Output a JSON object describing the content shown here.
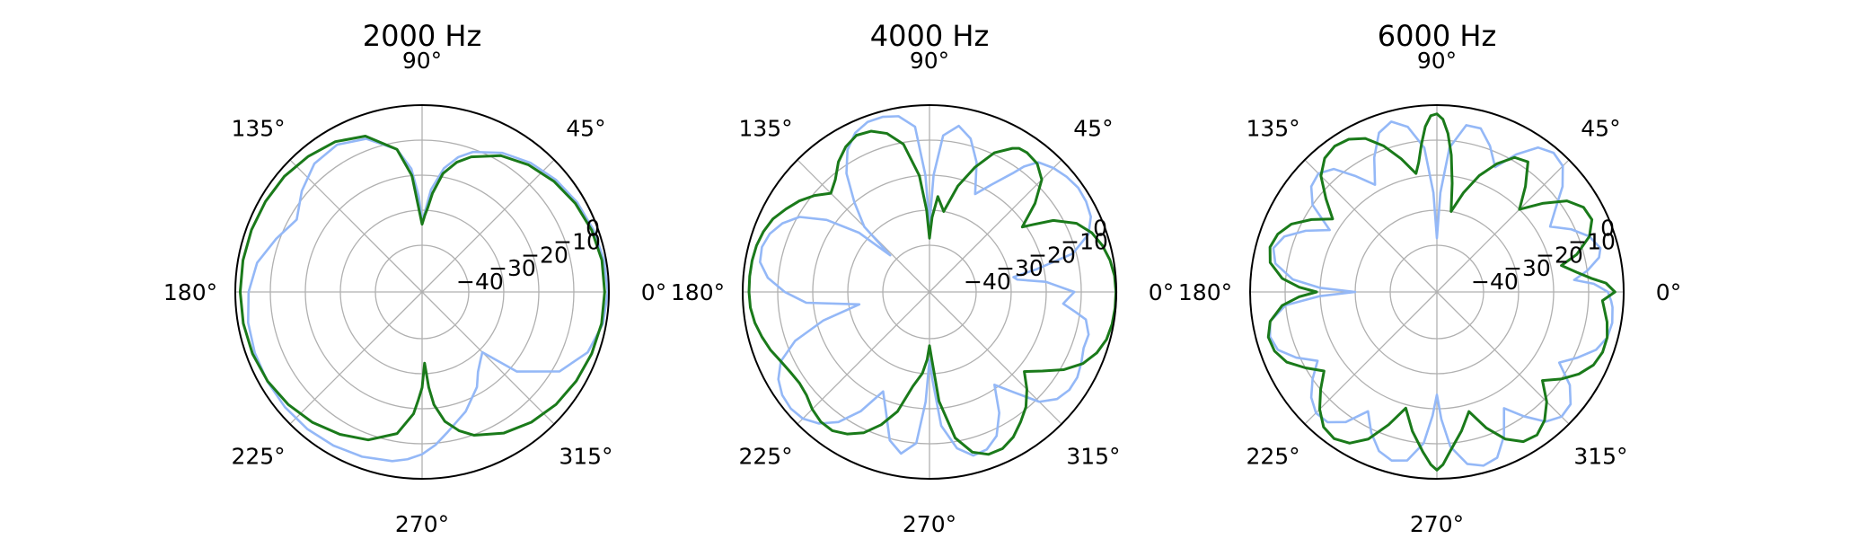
{
  "chart_data": [
    {
      "type": "polar-line",
      "title": "2000 Hz",
      "theta_ticks": [
        "0°",
        "45°",
        "90°",
        "135°",
        "180°",
        "225°",
        "270°",
        "315°"
      ],
      "r_ticks": [
        "−40",
        "−30",
        "−20",
        "−10",
        "0"
      ],
      "rlim": [
        -40,
        0
      ],
      "grid": true,
      "series": [
        {
          "color": "#94b8f7",
          "theta_deg": [
            0,
            10,
            20,
            30,
            40,
            50,
            60,
            70,
            75,
            80,
            85,
            88,
            90,
            92,
            95,
            100,
            110,
            120,
            130,
            140,
            150,
            160,
            170,
            180,
            190,
            200,
            210,
            220,
            230,
            240,
            250,
            260,
            265,
            270,
            275,
            280,
            290,
            300,
            305,
            310,
            315,
            320,
            330,
            340,
            350,
            360
          ],
          "r_db": [
            -0.3,
            -0.6,
            -1.3,
            -2.2,
            -3.5,
            -5.2,
            -7.5,
            -10.8,
            -13.5,
            -17.5,
            -24.0,
            -30.5,
            -33.0,
            -26.0,
            -18.0,
            -12.0,
            -6.8,
            -4.8,
            -5.5,
            -8.5,
            -12.0,
            -9.0,
            -5.5,
            -3.8,
            -2.9,
            -2.5,
            -2.3,
            -2.2,
            -2.3,
            -2.7,
            -3.3,
            -4.3,
            -5.4,
            -7.0,
            -9.5,
            -12.5,
            -17.0,
            -22.0,
            -25.5,
            -27.5,
            -29.0,
            -18.0,
            -8.0,
            -3.0,
            -0.9,
            -0.3
          ]
        },
        {
          "color": "#1a7a1a",
          "theta_deg": [
            0,
            10,
            20,
            30,
            40,
            50,
            60,
            70,
            75,
            80,
            84,
            86,
            88,
            90,
            95,
            100,
            110,
            120,
            130,
            140,
            150,
            160,
            170,
            180,
            190,
            200,
            210,
            220,
            230,
            240,
            250,
            260,
            266,
            268,
            270,
            272,
            274,
            276,
            280,
            285,
            290,
            300,
            310,
            320,
            330,
            340,
            350,
            360
          ],
          "r_db": [
            -1.2,
            -1.2,
            -1.8,
            -2.8,
            -4.2,
            -6.0,
            -8.4,
            -12.3,
            -15.0,
            -19.0,
            -25.0,
            -29.0,
            -31.5,
            -34.0,
            -20.0,
            -12.0,
            -6.0,
            -3.8,
            -2.8,
            -2.0,
            -1.7,
            -1.5,
            -1.4,
            -1.4,
            -1.5,
            -1.8,
            -2.4,
            -3.4,
            -4.7,
            -6.4,
            -8.4,
            -12.3,
            -18.5,
            -22.5,
            -26.0,
            -33.0,
            -26.0,
            -21.0,
            -15.8,
            -12.3,
            -9.8,
            -6.8,
            -4.8,
            -3.4,
            -2.5,
            -1.8,
            -1.3,
            -1.2
          ]
        }
      ]
    },
    {
      "type": "polar-line",
      "title": "4000 Hz",
      "theta_ticks": [
        "0°",
        "45°",
        "90°",
        "135°",
        "180°",
        "225°",
        "270°",
        "315°"
      ],
      "r_ticks": [
        "−40",
        "−30",
        "−20",
        "−10",
        "0"
      ],
      "rlim": [
        -40,
        0
      ],
      "grid": true,
      "series": [
        {
          "color": "#94b8f7",
          "theta_deg": [
            0,
            5,
            8,
            10,
            12,
            15,
            20,
            25,
            30,
            35,
            40,
            45,
            50,
            53,
            55,
            60,
            65,
            70,
            75,
            80,
            85,
            88,
            90,
            92,
            95,
            100,
            105,
            110,
            115,
            120,
            125,
            130,
            135,
            137,
            140,
            145,
            150,
            155,
            160,
            165,
            170,
            175,
            180,
            185,
            190,
            195,
            200,
            205,
            210,
            215,
            220,
            225,
            230,
            235,
            240,
            245,
            250,
            255,
            260,
            265,
            268,
            270,
            272,
            275,
            280,
            285,
            290,
            295,
            300,
            305,
            310,
            315,
            320,
            325,
            330,
            335,
            340,
            345,
            350,
            352,
            355,
            360
          ],
          "r_db": [
            -12.0,
            -20.0,
            -28.0,
            -29.0,
            -22.0,
            -11.0,
            -5.0,
            -2.5,
            -1.7,
            -1.5,
            -2.2,
            -3.3,
            -5.0,
            -8.5,
            -12.0,
            -18.0,
            -22.5,
            -14.0,
            -8.0,
            -5.2,
            -8.5,
            -20.0,
            -34.0,
            -20.0,
            -6.0,
            -2.4,
            -1.6,
            -1.7,
            -3.2,
            -6.5,
            -12.0,
            -20.0,
            -27.0,
            -38.0,
            -27.0,
            -17.5,
            -10.5,
            -7.0,
            -4.8,
            -3.8,
            -4.2,
            -7.0,
            -12.0,
            -18.0,
            -33.0,
            -22.0,
            -12.5,
            -6.5,
            -3.5,
            -2.0,
            -1.6,
            -2.2,
            -4.3,
            -8.0,
            -14.0,
            -22.0,
            -17.0,
            -9.5,
            -6.5,
            -10.0,
            -22.0,
            -34.0,
            -28.0,
            -15.0,
            -8.0,
            -5.0,
            -5.5,
            -8.0,
            -13.5,
            -21.0,
            -16.0,
            -9.0,
            -5.8,
            -4.6,
            -4.6,
            -5.5,
            -6.5,
            -6.3,
            -8.0,
            -11.0,
            -15.0,
            -12.0
          ]
        },
        {
          "color": "#1a7a1a",
          "theta_deg": [
            0,
            5,
            10,
            15,
            20,
            25,
            30,
            33,
            35,
            40,
            45,
            50,
            55,
            58,
            60,
            65,
            70,
            75,
            80,
            85,
            88,
            90,
            92,
            95,
            100,
            105,
            110,
            115,
            120,
            125,
            130,
            135,
            140,
            145,
            150,
            155,
            160,
            165,
            170,
            175,
            180,
            185,
            190,
            195,
            200,
            205,
            210,
            215,
            220,
            225,
            230,
            235,
            240,
            245,
            250,
            255,
            260,
            265,
            268,
            270,
            272,
            275,
            280,
            285,
            290,
            295,
            300,
            305,
            310,
            315,
            320,
            325,
            330,
            335,
            340,
            345,
            350,
            355,
            360
          ],
          "r_db": [
            -0.1,
            -0.3,
            -1.0,
            -2.2,
            -4.0,
            -7.0,
            -12.5,
            -18.0,
            -21.0,
            -14.0,
            -8.0,
            -5.5,
            -4.8,
            -5.0,
            -6.0,
            -9.5,
            -15.5,
            -22.0,
            -30.0,
            -26.0,
            -32.0,
            -38.0,
            -30.0,
            -20.0,
            -10.5,
            -6.5,
            -4.5,
            -4.0,
            -5.5,
            -8.0,
            -11.5,
            -13.5,
            -10.5,
            -8.0,
            -6.0,
            -4.0,
            -2.9,
            -2.2,
            -1.9,
            -1.8,
            -1.8,
            -2.0,
            -2.7,
            -3.8,
            -5.0,
            -6.5,
            -7.5,
            -8.0,
            -7.5,
            -6.0,
            -5.0,
            -5.0,
            -6.5,
            -9.0,
            -13.0,
            -18.0,
            -26.0,
            -30.0,
            -34.0,
            -38.0,
            -34.0,
            -22.0,
            -11.0,
            -6.0,
            -4.0,
            -4.0,
            -5.5,
            -8.0,
            -10.5,
            -14.0,
            -18.0,
            -14.0,
            -9.0,
            -5.0,
            -2.5,
            -1.0,
            -0.4,
            -0.15,
            -0.1
          ]
        }
      ]
    },
    {
      "type": "polar-line",
      "title": "6000 Hz",
      "theta_ticks": [
        "0°",
        "45°",
        "90°",
        "135°",
        "180°",
        "225°",
        "270°",
        "315°"
      ],
      "r_ticks": [
        "−40",
        "−30",
        "−20",
        "−10",
        "0"
      ],
      "rlim": [
        -40,
        0
      ],
      "grid": true,
      "series": [
        {
          "color": "#94b8f7",
          "theta_deg": [
            0,
            3,
            5,
            8,
            12,
            15,
            20,
            25,
            30,
            35,
            40,
            45,
            50,
            55,
            60,
            65,
            70,
            75,
            80,
            85,
            88,
            90,
            92,
            95,
            100,
            105,
            110,
            115,
            120,
            125,
            130,
            135,
            140,
            145,
            150,
            155,
            160,
            165,
            170,
            175,
            178,
            180,
            182,
            185,
            190,
            195,
            200,
            205,
            210,
            215,
            220,
            225,
            230,
            235,
            240,
            245,
            250,
            255,
            260,
            265,
            268,
            270,
            272,
            275,
            280,
            285,
            290,
            295,
            300,
            305,
            310,
            315,
            320,
            325,
            330,
            335,
            340,
            345,
            350,
            355,
            357,
            360
          ],
          "r_db": [
            -4.5,
            -8.5,
            -14.0,
            -10.0,
            -6.0,
            -5.0,
            -7.0,
            -11.0,
            -16.0,
            -12.0,
            -6.5,
            -2.5,
            -1.5,
            -3.0,
            -8.0,
            -14.0,
            -9.0,
            -5.0,
            -5.0,
            -12.0,
            -25.0,
            -38.0,
            -25.0,
            -12.0,
            -5.5,
            -3.0,
            -5.0,
            -11.0,
            -18.0,
            -13.0,
            -7.5,
            -5.5,
            -6.5,
            -10.0,
            -18.0,
            -12.0,
            -7.0,
            -5.0,
            -6.5,
            -12.0,
            -20.0,
            -30.0,
            -20.0,
            -10.0,
            -5.0,
            -4.0,
            -5.0,
            -9.0,
            -14.0,
            -10.0,
            -6.5,
            -4.5,
            -4.8,
            -8.0,
            -14.0,
            -9.0,
            -5.0,
            -3.5,
            -4.5,
            -10.0,
            -18.0,
            -24.0,
            -17.0,
            -9.0,
            -3.5,
            -2.0,
            -3.0,
            -8.0,
            -15.0,
            -10.0,
            -5.0,
            -3.0,
            -3.5,
            -7.0,
            -13.0,
            -9.0,
            -5.0,
            -3.0,
            -2.5,
            -3.0,
            -3.5,
            -4.5
          ]
        },
        {
          "color": "#1a7a1a",
          "theta_deg": [
            0,
            3,
            5,
            8,
            12,
            15,
            20,
            25,
            30,
            35,
            40,
            45,
            50,
            55,
            60,
            65,
            70,
            75,
            80,
            82,
            84,
            86,
            88,
            90,
            92,
            94,
            96,
            98,
            100,
            105,
            110,
            115,
            120,
            125,
            130,
            135,
            140,
            145,
            150,
            155,
            160,
            165,
            170,
            175,
            178,
            180,
            182,
            185,
            190,
            195,
            200,
            205,
            210,
            215,
            220,
            225,
            230,
            235,
            240,
            245,
            250,
            255,
            260,
            265,
            268,
            270,
            272,
            275,
            280,
            285,
            290,
            295,
            300,
            305,
            310,
            315,
            320,
            325,
            330,
            335,
            340,
            345,
            350,
            355,
            357,
            360
          ],
          "r_db": [
            -2.5,
            -5.0,
            -9.0,
            -13.0,
            -17.0,
            -12.0,
            -7.0,
            -4.5,
            -5.0,
            -8.0,
            -14.0,
            -20.0,
            -14.0,
            -8.0,
            -9.0,
            -13.0,
            -18.0,
            -24.0,
            -30.0,
            -22.0,
            -14.0,
            -8.0,
            -4.0,
            -2.5,
            -3.0,
            -6.0,
            -11.0,
            -16.0,
            -19.0,
            -14.0,
            -9.0,
            -5.0,
            -3.0,
            -2.5,
            -3.5,
            -6.5,
            -12.0,
            -17.0,
            -12.0,
            -7.5,
            -5.0,
            -4.0,
            -5.0,
            -9.0,
            -14.0,
            -19.0,
            -14.0,
            -9.0,
            -5.0,
            -3.5,
            -4.0,
            -6.0,
            -10.0,
            -14.0,
            -10.0,
            -6.0,
            -3.0,
            -2.2,
            -3.5,
            -7.0,
            -13.0,
            -19.0,
            -13.0,
            -7.5,
            -4.0,
            -2.5,
            -4.0,
            -8.0,
            -13.0,
            -18.0,
            -12.0,
            -7.0,
            -4.0,
            -3.5,
            -5.5,
            -9.0,
            -14.0,
            -10.0,
            -6.5,
            -4.0,
            -3.0,
            -3.0,
            -4.0,
            -5.5,
            -6.0,
            -2.5
          ]
        }
      ]
    }
  ]
}
